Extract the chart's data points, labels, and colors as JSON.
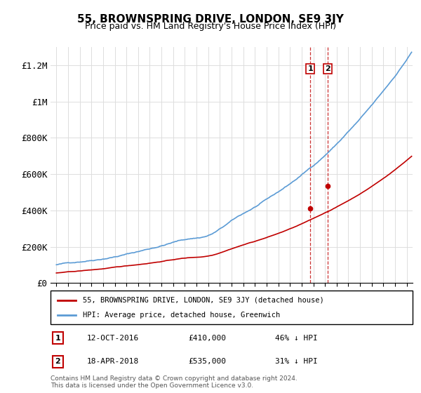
{
  "title": "55, BROWNSPRING DRIVE, LONDON, SE9 3JY",
  "subtitle": "Price paid vs. HM Land Registry's House Price Index (HPI)",
  "hpi_label": "HPI: Average price, detached house, Greenwich",
  "property_label": "55, BROWNSPRING DRIVE, LONDON, SE9 3JY (detached house)",
  "hpi_color": "#5b9bd5",
  "property_color": "#c00000",
  "sale1_date": "12-OCT-2016",
  "sale1_price": 410000,
  "sale1_pct": "46% ↓ HPI",
  "sale2_date": "18-APR-2018",
  "sale2_price": 535000,
  "sale2_pct": "31% ↓ HPI",
  "footer": "Contains HM Land Registry data © Crown copyright and database right 2024.\nThis data is licensed under the Open Government Licence v3.0.",
  "ylim": [
    0,
    1300000
  ],
  "yticks": [
    0,
    200000,
    400000,
    600000,
    800000,
    1000000,
    1200000
  ],
  "ytick_labels": [
    "£0",
    "£200K",
    "£400K",
    "£600K",
    "£800K",
    "£1M",
    "£1.2M"
  ],
  "background_color": "#ffffff",
  "grid_color": "#dddddd"
}
